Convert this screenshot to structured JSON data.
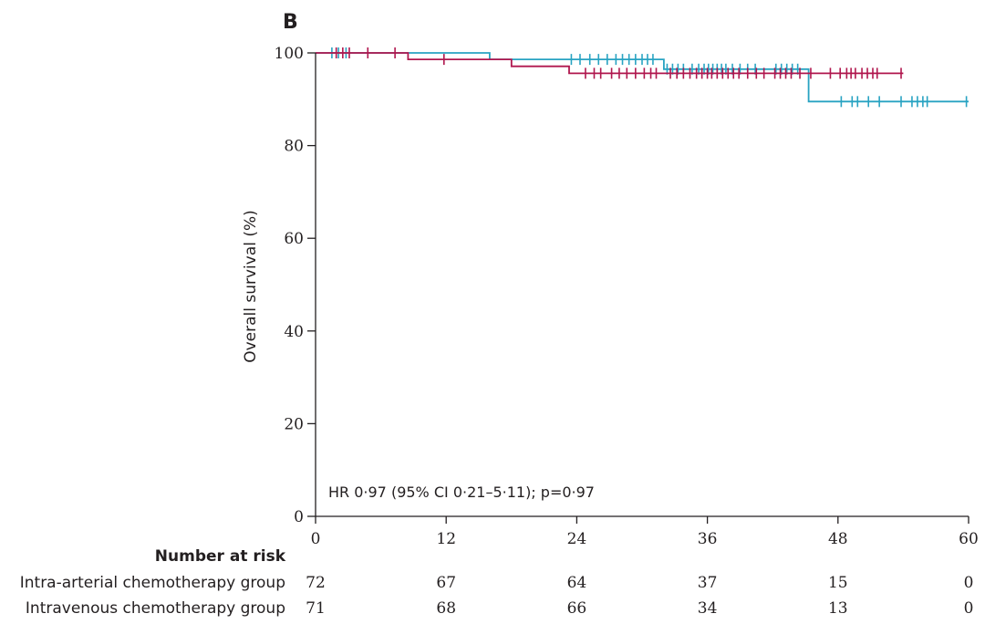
{
  "panel_label": "B",
  "annotation": "HR 0·97 (95% CI 0·21–5·11); p=0·97",
  "chart_data": {
    "type": "line",
    "subtype": "kaplan-meier",
    "ylabel": "Overall survival (%)",
    "xlabel": "",
    "xlim": [
      0,
      60
    ],
    "ylim": [
      0,
      100
    ],
    "x_ticks": [
      0,
      12,
      24,
      36,
      48,
      60
    ],
    "y_ticks": [
      0,
      20,
      40,
      60,
      80,
      100
    ],
    "grid": false,
    "series": [
      {
        "color": "#29a3c2",
        "steps": [
          [
            0,
            100
          ],
          [
            16,
            100
          ],
          [
            16,
            98.6
          ],
          [
            32,
            98.6
          ],
          [
            32,
            96.5
          ],
          [
            45.3,
            96.5
          ],
          [
            45.3,
            89.5
          ],
          [
            60,
            89.5
          ]
        ],
        "censor_x": [
          1.5,
          2.1,
          2.8,
          23.5,
          24.3,
          25.2,
          26,
          26.8,
          27.6,
          28.2,
          28.8,
          29.4,
          30,
          30.5,
          31,
          32.3,
          32.8,
          33.3,
          33.8,
          34.6,
          35.2,
          35.7,
          36.1,
          36.5,
          36.9,
          37.3,
          37.7,
          38.3,
          39,
          39.7,
          40.4,
          42.3,
          42.8,
          43.3,
          43.8,
          44.3,
          48.3,
          49.3,
          49.8,
          50.8,
          51.8,
          53.8,
          54.8,
          55.3,
          55.8,
          56.2,
          59.8
        ]
      },
      {
        "color": "#b0174e",
        "steps": [
          [
            0,
            100
          ],
          [
            8.5,
            100
          ],
          [
            8.5,
            98.6
          ],
          [
            18,
            98.6
          ],
          [
            18,
            97.1
          ],
          [
            23.3,
            97.1
          ],
          [
            23.3,
            95.6
          ],
          [
            54,
            95.6
          ]
        ],
        "censor_x": [
          1.9,
          2.5,
          3.1,
          4.8,
          7.3,
          11.8,
          24.8,
          25.6,
          26.2,
          27.2,
          27.9,
          28.6,
          29.4,
          30.2,
          30.8,
          31.3,
          32.6,
          33.2,
          33.8,
          34.4,
          35,
          35.5,
          36,
          36.4,
          36.9,
          37.4,
          37.9,
          38.4,
          38.9,
          39.7,
          40.5,
          41.2,
          42.2,
          42.7,
          43.2,
          43.7,
          44.5,
          45.5,
          47.3,
          48.2,
          48.8,
          49.2,
          49.6,
          50.2,
          50.7,
          51.2,
          51.6,
          53.8
        ]
      }
    ]
  },
  "risk_table": {
    "title": "Number at risk",
    "rows": [
      {
        "label": "Intra-arterial chemotherapy group",
        "values": [
          "72",
          "67",
          "64",
          "37",
          "15",
          "0"
        ]
      },
      {
        "label": "Intravenous chemotherapy group",
        "values": [
          "71",
          "68",
          "66",
          "34",
          "13",
          "0"
        ]
      }
    ]
  }
}
